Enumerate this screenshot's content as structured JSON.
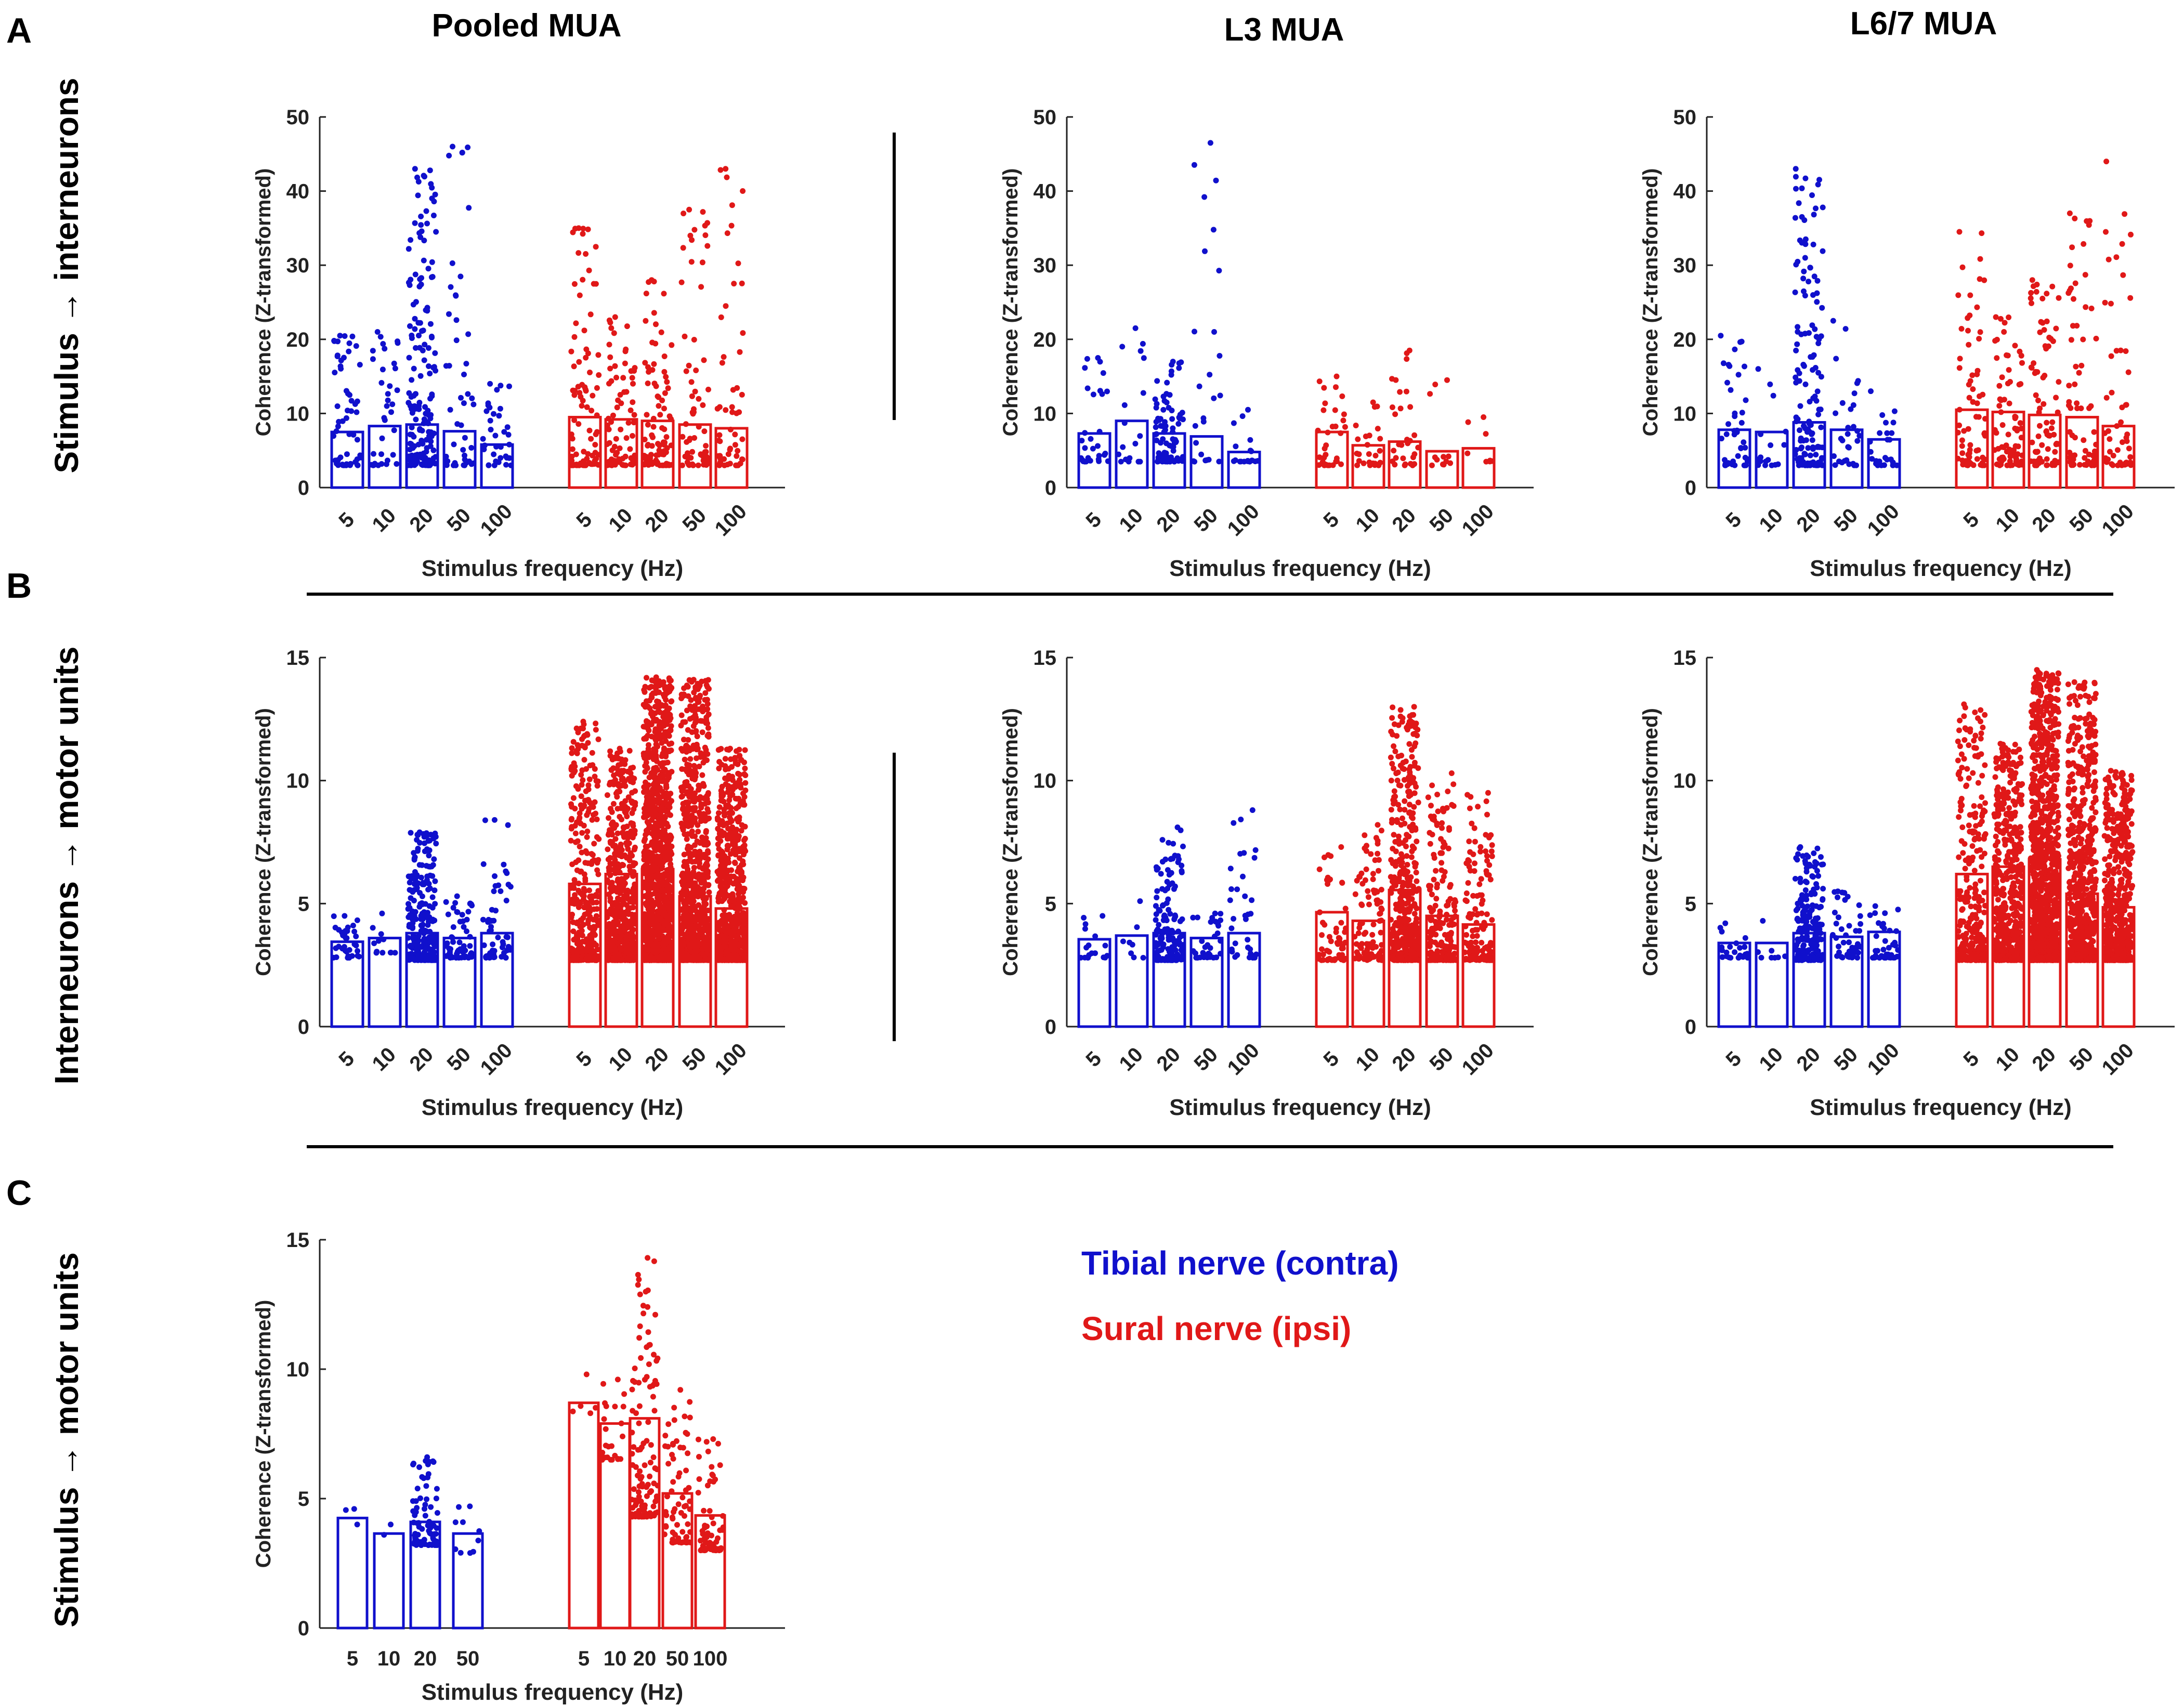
{
  "panel_letters": [
    "A",
    "B",
    "C"
  ],
  "row_labels": [
    "Stimulus → interneurons",
    "Interneurons → motor units",
    "Stimulus → motor units"
  ],
  "column_titles": [
    "Pooled MUA",
    "L3 MUA",
    "L6/7 MUA"
  ],
  "legend": [
    {
      "label": "Tibial nerve (contra)",
      "color": "#1010CC"
    },
    {
      "label": "Sural nerve (ipsi)",
      "color": "#E01818"
    }
  ],
  "colors": {
    "tibial": "#1010CC",
    "sural": "#E01818",
    "axis": "#222222"
  },
  "chart_data": [
    {
      "id": "A-pooled",
      "type": "bar",
      "title": "",
      "xlabel": "Stimulus frequency (Hz)",
      "ylabel": "Coherence (Z-transformed)",
      "ylim": [
        0,
        50
      ],
      "yticks": [
        0,
        10,
        20,
        30,
        40,
        50
      ],
      "series": [
        {
          "name": "Tibial nerve (contra)",
          "categories": [
            "5",
            "10",
            "20",
            "50",
            "100"
          ],
          "values": [
            7.5,
            8.3,
            8.5,
            7.6,
            5.8
          ],
          "max": [
            20.5,
            21,
            43,
            46,
            14
          ],
          "min": [
            3,
            3,
            3,
            3,
            3
          ],
          "n": [
            60,
            35,
            180,
            45,
            35
          ]
        },
        {
          "name": "Sural nerve (ipsi)",
          "categories": [
            "5",
            "10",
            "20",
            "50",
            "100"
          ],
          "values": [
            9.5,
            9.2,
            9.0,
            8.5,
            8.0
          ],
          "max": [
            35,
            23,
            28,
            37.5,
            43
          ],
          "min": [
            3,
            3,
            3,
            3,
            3
          ],
          "n": [
            90,
            80,
            90,
            70,
            55
          ]
        }
      ]
    },
    {
      "id": "A-L3",
      "type": "bar",
      "title": "",
      "xlabel": "Stimulus frequency (Hz)",
      "ylabel": "Coherence (Z-transformed)",
      "ylim": [
        0,
        50
      ],
      "yticks": [
        0,
        10,
        20,
        30,
        40,
        50
      ],
      "series": [
        {
          "name": "Tibial nerve (contra)",
          "categories": [
            "5",
            "10",
            "20",
            "50",
            "100"
          ],
          "values": [
            7.3,
            9.0,
            7.3,
            6.9,
            4.8
          ],
          "max": [
            17.5,
            21.5,
            17,
            46.5,
            10.5
          ],
          "min": [
            3.5,
            3.5,
            3.5,
            3.5,
            3.5
          ],
          "n": [
            30,
            18,
            90,
            25,
            18
          ]
        },
        {
          "name": "Sural nerve (ipsi)",
          "categories": [
            "5",
            "10",
            "20",
            "50",
            "100"
          ],
          "values": [
            7.5,
            5.7,
            6.2,
            4.9,
            5.3
          ],
          "max": [
            15,
            11.5,
            18.5,
            14.5,
            9.5
          ],
          "min": [
            3,
            3,
            3,
            3,
            3.5
          ],
          "n": [
            35,
            25,
            30,
            12,
            8
          ]
        }
      ]
    },
    {
      "id": "A-L67",
      "type": "bar",
      "title": "",
      "xlabel": "Stimulus frequency (Hz)",
      "ylabel": "Coherence (Z-transformed)",
      "ylim": [
        0,
        50
      ],
      "yticks": [
        0,
        10,
        20,
        30,
        40,
        50
      ],
      "series": [
        {
          "name": "Tibial nerve (contra)",
          "categories": [
            "5",
            "10",
            "20",
            "50",
            "100"
          ],
          "values": [
            7.8,
            7.5,
            8.8,
            7.8,
            6.5
          ],
          "max": [
            20.5,
            16,
            43,
            22.5,
            13
          ],
          "min": [
            3,
            3,
            3,
            3,
            3
          ],
          "n": [
            45,
            18,
            140,
            30,
            25
          ]
        },
        {
          "name": "Sural nerve (ipsi)",
          "categories": [
            "5",
            "10",
            "20",
            "50",
            "100"
          ],
          "values": [
            10.5,
            10.2,
            9.8,
            9.5,
            8.3
          ],
          "max": [
            34.5,
            23,
            28,
            37,
            44
          ],
          "min": [
            3,
            3,
            3,
            3,
            3
          ],
          "n": [
            70,
            80,
            85,
            70,
            50
          ]
        }
      ]
    },
    {
      "id": "B-pooled",
      "type": "bar",
      "title": "",
      "xlabel": "Stimulus frequency (Hz)",
      "ylabel": "Coherence (Z-transformed)",
      "ylim": [
        0,
        15
      ],
      "yticks": [
        0,
        5,
        10,
        15
      ],
      "series": [
        {
          "name": "Tibial nerve (contra)",
          "categories": [
            "5",
            "10",
            "20",
            "50",
            "100"
          ],
          "values": [
            3.45,
            3.6,
            3.8,
            3.6,
            3.8
          ],
          "max": [
            4.5,
            4.6,
            7.9,
            5.3,
            8.4
          ],
          "min": [
            2.8,
            3.0,
            2.7,
            2.8,
            2.8
          ],
          "n": [
            35,
            12,
            260,
            60,
            55
          ]
        },
        {
          "name": "Sural nerve (ipsi)",
          "categories": [
            "5",
            "10",
            "20",
            "50",
            "100"
          ],
          "values": [
            5.8,
            6.2,
            6.4,
            5.3,
            4.8
          ],
          "max": [
            12.4,
            11.3,
            14.2,
            14.1,
            11.3
          ],
          "min": [
            2.7,
            2.7,
            2.7,
            2.7,
            2.7
          ],
          "n": [
            340,
            600,
            1200,
            800,
            650
          ]
        }
      ]
    },
    {
      "id": "B-L3",
      "type": "bar",
      "title": "",
      "xlabel": "Stimulus frequency (Hz)",
      "ylabel": "Coherence (Z-transformed)",
      "ylim": [
        0,
        15
      ],
      "yticks": [
        0,
        5,
        10,
        15
      ],
      "series": [
        {
          "name": "Tibial nerve (contra)",
          "categories": [
            "5",
            "10",
            "20",
            "50",
            "100"
          ],
          "values": [
            3.55,
            3.7,
            3.8,
            3.6,
            3.8
          ],
          "max": [
            4.5,
            5.1,
            8.1,
            4.6,
            8.8
          ],
          "min": [
            2.8,
            2.8,
            2.7,
            2.8,
            2.8
          ],
          "n": [
            18,
            8,
            160,
            35,
            35
          ]
        },
        {
          "name": "Sural nerve (ipsi)",
          "categories": [
            "5",
            "10",
            "20",
            "50",
            "100"
          ],
          "values": [
            4.65,
            4.3,
            5.55,
            4.5,
            4.15
          ],
          "max": [
            7.3,
            8.2,
            13.0,
            10.3,
            9.5
          ],
          "min": [
            2.7,
            2.7,
            2.7,
            2.7,
            2.7
          ],
          "n": [
            60,
            100,
            420,
            180,
            140
          ]
        }
      ]
    },
    {
      "id": "B-L67",
      "type": "bar",
      "title": "",
      "xlabel": "Stimulus frequency (Hz)",
      "ylabel": "Coherence (Z-transformed)",
      "ylim": [
        0,
        15
      ],
      "yticks": [
        0,
        5,
        10,
        15
      ],
      "series": [
        {
          "name": "Tibial nerve (contra)",
          "categories": [
            "5",
            "10",
            "20",
            "50",
            "100"
          ],
          "values": [
            3.4,
            3.4,
            3.8,
            3.65,
            3.85
          ],
          "max": [
            4.2,
            4.3,
            7.3,
            5.5,
            4.9
          ],
          "min": [
            2.8,
            2.8,
            2.7,
            2.8,
            2.8
          ],
          "n": [
            25,
            8,
            200,
            45,
            40
          ]
        },
        {
          "name": "Sural nerve (ipsi)",
          "categories": [
            "5",
            "10",
            "20",
            "50",
            "100"
          ],
          "values": [
            6.2,
            6.5,
            6.8,
            5.4,
            4.85
          ],
          "max": [
            13.1,
            11.5,
            14.5,
            14.0,
            10.4
          ],
          "min": [
            2.7,
            2.7,
            2.7,
            2.7,
            2.7
          ],
          "n": [
            280,
            520,
            1100,
            700,
            550
          ]
        }
      ]
    },
    {
      "id": "C-pooled",
      "type": "bar",
      "title": "",
      "xlabel": "Stimulus frequency (Hz)",
      "ylabel": "Coherence (Z-transformed)",
      "ylim": [
        0,
        15
      ],
      "yticks": [
        0,
        5,
        10,
        15
      ],
      "series": [
        {
          "name": "Tibial nerve (contra)",
          "categories": [
            "5",
            "10",
            "20",
            "50"
          ],
          "values": [
            4.25,
            3.65,
            4.1,
            3.65
          ],
          "max": [
            4.6,
            4.0,
            6.6,
            4.7
          ],
          "min": [
            4.0,
            3.6,
            3.2,
            2.9
          ],
          "n": [
            3,
            2,
            80,
            10
          ]
        },
        {
          "name": "Sural nerve (ipsi)",
          "categories": [
            "5",
            "10",
            "20",
            "50",
            "100"
          ],
          "values": [
            8.7,
            7.9,
            8.1,
            5.2,
            4.35
          ],
          "max": [
            9.8,
            9.6,
            14.3,
            9.2,
            7.3
          ],
          "min": [
            8.3,
            6.5,
            4.3,
            3.3,
            3.0
          ],
          "n": [
            5,
            25,
            120,
            70,
            60
          ]
        }
      ]
    }
  ]
}
